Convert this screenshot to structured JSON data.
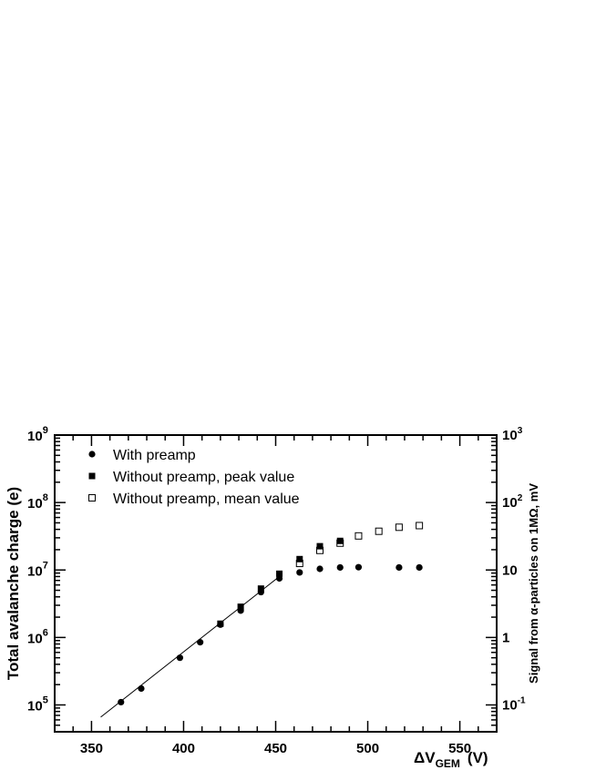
{
  "chart_data": {
    "type": "scatter",
    "title": "",
    "xlabel": "ΔV",
    "xlabel_subscript": "GEM",
    "xlabel_unit": "(V)",
    "ylabel": "Total avalanche charge (e)",
    "y2label": "Signal from α-particles on 1MΩ, mV",
    "xlim": [
      330,
      570
    ],
    "ylim": [
      40000,
      1000000000
    ],
    "y2lim": [
      0.04,
      1000
    ],
    "yscale": "log",
    "x_ticks": [
      350,
      400,
      450,
      500,
      550
    ],
    "x_tick_labels": [
      "350",
      "400",
      "450",
      "500",
      "550"
    ],
    "y_ticks": [
      100000,
      1000000,
      10000000,
      100000000,
      1000000000
    ],
    "y_tick_bases": [
      "10",
      "10",
      "10",
      "10",
      "10"
    ],
    "y_tick_exps": [
      "5",
      "6",
      "7",
      "8",
      "9"
    ],
    "y2_ticks": [
      0.1,
      1,
      10,
      100,
      1000
    ],
    "y2_tick_labels": [
      {
        "base": "10",
        "exp": "-1"
      },
      {
        "base": "1",
        "exp": ""
      },
      {
        "base": "10",
        "exp": ""
      },
      {
        "base": "10",
        "exp": "2"
      },
      {
        "base": "10",
        "exp": "3"
      }
    ],
    "grid": false,
    "legend_position": "top-left",
    "series": [
      {
        "name": "With preamp",
        "marker": "filled-circle",
        "x": [
          366,
          377,
          398,
          409,
          420,
          431,
          442,
          452,
          463,
          474,
          485,
          495,
          517,
          528
        ],
        "y": [
          110000,
          175000,
          500000,
          850000,
          1550000,
          2500000,
          4700000,
          7500000,
          9200000,
          10400000,
          10900000,
          11000000,
          10900000,
          10900000
        ]
      },
      {
        "name": "Without preamp, peak value",
        "marker": "filled-square",
        "x": [
          420,
          431,
          442,
          452,
          463,
          474,
          485
        ],
        "y": [
          1600000,
          2850000,
          5300000,
          8800000,
          14500000,
          22500000,
          27000000
        ]
      },
      {
        "name": "Without preamp, mean value",
        "marker": "open-square",
        "x": [
          463,
          474,
          485,
          495,
          506,
          517,
          528
        ],
        "y": [
          12500000,
          19500000,
          25000000,
          32000000,
          37500000,
          43000000,
          45500000
        ]
      }
    ],
    "fit_line": {
      "x": [
        355,
        452
      ],
      "y": [
        66000,
        8000000
      ]
    },
    "colors": {
      "markers": "#000000",
      "axes": "#000000",
      "background": "#ffffff"
    }
  }
}
